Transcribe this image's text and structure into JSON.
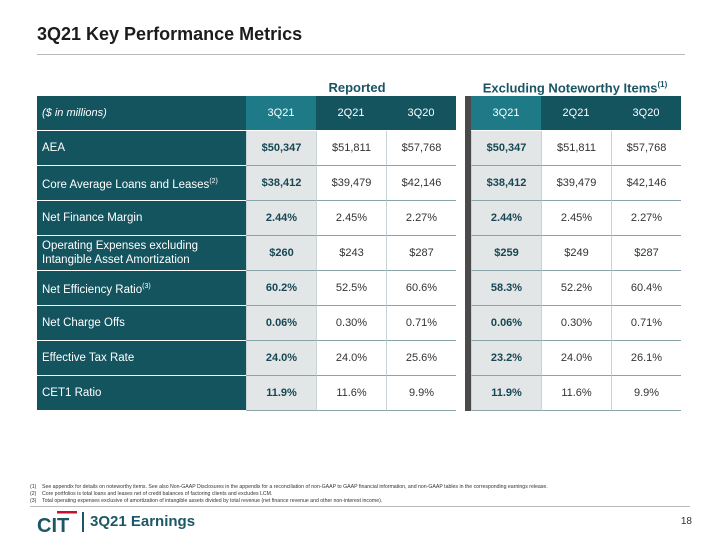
{
  "page": {
    "title": "3Q21 Key Performance Metrics",
    "group_reported": "Reported",
    "group_excluding": "Excluding Noteworthy Items",
    "group_excluding_sup": "(1)"
  },
  "table": {
    "header_label": "($ in millions)",
    "reported_cols": [
      "3Q21",
      "2Q21",
      "3Q20"
    ],
    "excluding_cols": [
      "3Q21",
      "2Q21",
      "3Q20"
    ],
    "rows": [
      {
        "label": "AEA",
        "sup": "",
        "reported": [
          "$50,347",
          "$51,811",
          "$57,768"
        ],
        "excluding": [
          "$50,347",
          "$51,811",
          "$57,768"
        ]
      },
      {
        "label": "Core Average Loans and Leases",
        "sup": "(2)",
        "reported": [
          "$38,412",
          "$39,479",
          "$42,146"
        ],
        "excluding": [
          "$38,412",
          "$39,479",
          "$42,146"
        ]
      },
      {
        "label": "Net Finance Margin",
        "sup": "",
        "reported": [
          "2.44%",
          "2.45%",
          "2.27%"
        ],
        "excluding": [
          "2.44%",
          "2.45%",
          "2.27%"
        ]
      },
      {
        "label": "Operating Expenses excluding Intangible Asset Amortization",
        "sup": "",
        "reported": [
          "$260",
          "$243",
          "$287"
        ],
        "excluding": [
          "$259",
          "$249",
          "$287"
        ]
      },
      {
        "label": "Net Efficiency Ratio",
        "sup": "(3)",
        "reported": [
          "60.2%",
          "52.5%",
          "60.6%"
        ],
        "excluding": [
          "58.3%",
          "52.2%",
          "60.4%"
        ]
      },
      {
        "label": "Net Charge Offs",
        "sup": "",
        "reported": [
          "0.06%",
          "0.30%",
          "0.71%"
        ],
        "excluding": [
          "0.06%",
          "0.30%",
          "0.71%"
        ]
      },
      {
        "label": "Effective Tax Rate",
        "sup": "",
        "reported": [
          "24.0%",
          "24.0%",
          "25.6%"
        ],
        "excluding": [
          "23.2%",
          "24.0%",
          "26.1%"
        ]
      },
      {
        "label": "CET1 Ratio",
        "sup": "",
        "reported": [
          "11.9%",
          "11.6%",
          "9.9%"
        ],
        "excluding": [
          "11.9%",
          "11.6%",
          "9.9%"
        ]
      }
    ]
  },
  "footnotes": [
    {
      "num": "(1)",
      "text": "See appendix for details on noteworthy items. See also Non-GAAP Disclosures in the appendix for a reconciliation of non-GAAP to GAAP financial information, and non-GAAP tables in the corresponding earnings release."
    },
    {
      "num": "(2)",
      "text": "Core portfolios is total loans and leases net of credit balances of factoring clients and excludes LCM."
    },
    {
      "num": "(3)",
      "text": "Total operating expenses exclusive of amortization of intangible assets divided by total revenue (net finance revenue and other non-interest income)."
    }
  ],
  "footer": {
    "logo_text": "CIT",
    "title": "3Q21 Earnings",
    "page_number": "18"
  },
  "colors": {
    "brand_teal": "#13545f",
    "highlight_teal": "#1d7a86",
    "highlight_cell": "#e3e6e7",
    "logo_red": "#c8102e"
  }
}
